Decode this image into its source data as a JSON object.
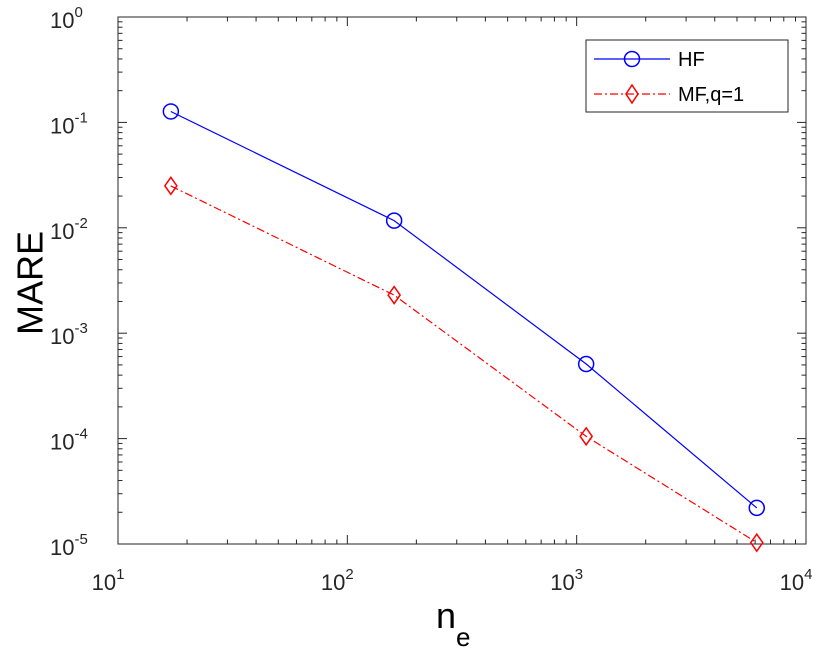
{
  "chart_data": {
    "type": "line",
    "title": "",
    "xlabel": {
      "base": "n",
      "subscript": "e"
    },
    "ylabel": "MARE",
    "xscale": "log",
    "yscale": "log",
    "xlim": [
      10,
      10000
    ],
    "ylim": [
      1e-05,
      1
    ],
    "x_ticks": [
      {
        "value": 10,
        "base": "10",
        "exp": "1"
      },
      {
        "value": 100,
        "base": "10",
        "exp": "2"
      },
      {
        "value": 1000,
        "base": "10",
        "exp": "3"
      },
      {
        "value": 10000,
        "base": "10",
        "exp": "4"
      }
    ],
    "y_ticks": [
      {
        "value": 1,
        "base": "10",
        "exp": "0"
      },
      {
        "value": 0.1,
        "base": "10",
        "exp": "-1"
      },
      {
        "value": 0.01,
        "base": "10",
        "exp": "-2"
      },
      {
        "value": 0.001,
        "base": "10",
        "exp": "-3"
      },
      {
        "value": 0.0001,
        "base": "10",
        "exp": "-4"
      },
      {
        "value": 1e-05,
        "base": "10",
        "exp": "-5"
      }
    ],
    "grid": false,
    "legend_position": "top-right",
    "series": [
      {
        "name": "HF",
        "color": "#0000ff",
        "line_style": "solid",
        "marker": "circle",
        "x": [
          17,
          160,
          1100,
          6100
        ],
        "y": [
          0.127,
          0.0117,
          0.00051,
          2.2e-05
        ]
      },
      {
        "name": "MF,q=1",
        "color": "#ff0000",
        "line_style": "dash-dot",
        "marker": "diamond",
        "x": [
          17,
          160,
          1100,
          6100
        ],
        "y": [
          0.025,
          0.0023,
          0.000105,
          1.03e-05
        ]
      }
    ]
  }
}
